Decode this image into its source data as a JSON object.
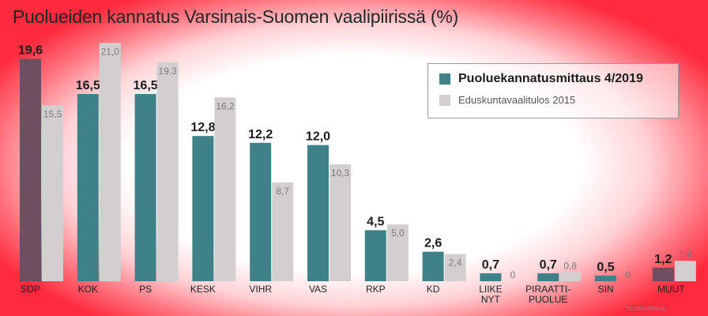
{
  "title": "Puolueiden kannatus Varsinais-Suomen vaalipiirissä (%)",
  "footnote": "TS GRAAFIKKA",
  "colors": {
    "primary": "#3f8189",
    "secondary": "#d3cfd0",
    "sdp": "#6f4e5f",
    "muut": "#6f4e5f"
  },
  "legend": {
    "position": "top-right",
    "items": [
      {
        "label": "Puoluekannatusmittaus 4/2019",
        "color": "#3f8189"
      },
      {
        "label": "Eduskuntavaalitulos 2015",
        "color": "#d3cfd0"
      }
    ]
  },
  "chart_data": {
    "type": "bar",
    "title": "Puolueiden kannatus Varsinais-Suomen vaalipiirissä (%)",
    "xlabel": "",
    "ylabel": "",
    "ylim": [
      0,
      22
    ],
    "grid": false,
    "categories": [
      [
        "SDP"
      ],
      [
        "KOK"
      ],
      [
        "PS"
      ],
      [
        "KESK"
      ],
      [
        "VIHR"
      ],
      [
        "VAS"
      ],
      [
        "RKP"
      ],
      [
        "KD"
      ],
      [
        "LIIKE",
        "NYT"
      ],
      [
        "PIRAATTI-",
        "PUOLUE"
      ],
      [
        "SIN"
      ],
      [
        "MUUT"
      ]
    ],
    "series": [
      {
        "name": "Puoluekannatusmittaus 4/2019",
        "values": [
          19.6,
          16.5,
          16.5,
          12.8,
          12.2,
          12.0,
          4.5,
          2.6,
          0.7,
          0.7,
          0.5,
          1.2
        ],
        "labels": [
          "19,6",
          "16,5",
          "16,5",
          "12,8",
          "12,2",
          "12,0",
          "4,5",
          "2,6",
          "0,7",
          "0,7",
          "0,5",
          "1,2"
        ]
      },
      {
        "name": "Eduskuntavaalitulos 2015",
        "values": [
          15.5,
          21.0,
          19.3,
          16.2,
          8.7,
          10.3,
          5.0,
          2.4,
          0,
          0.8,
          0,
          1.8
        ],
        "labels": [
          "15,5",
          "21,0",
          "19,3",
          "16,2",
          "8,7",
          "10,3",
          "5,0",
          "2,4",
          "0",
          "0,8",
          "0",
          "1,8"
        ]
      }
    ]
  }
}
